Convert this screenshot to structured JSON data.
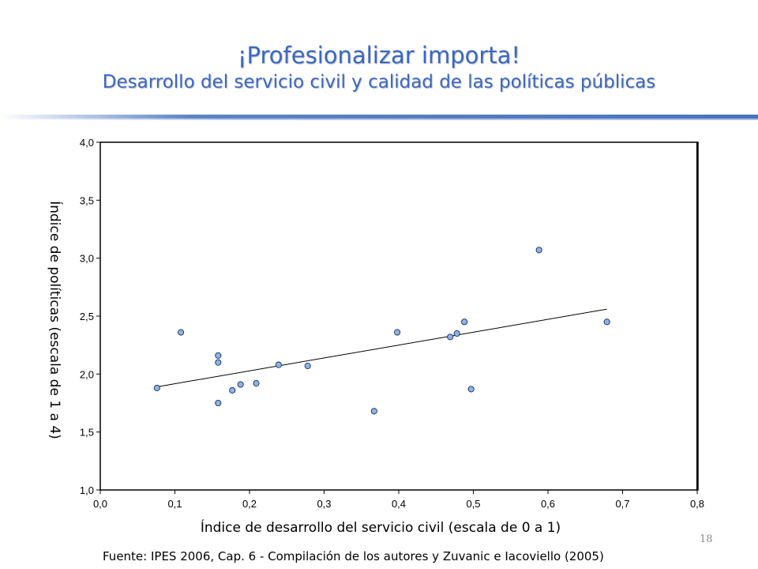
{
  "slide": {
    "title": "¡Profesionalizar importa!",
    "subtitle": "Desarrollo del servicio civil y calidad de las políticas públicas",
    "source": "Fuente: IPES 2006, Cap. 6 - Compilación de los autores y Zuvanic e Iacoviello (2005)",
    "page_number": "18",
    "accent_color": "#3a67c4"
  },
  "chart_data": {
    "type": "scatter",
    "title": "",
    "xlabel": "Índice de desarrollo del servicio civil (escala de 0 a 1)",
    "ylabel": "Índice de políticas (escala de 1 a 4)",
    "xlim": [
      0.0,
      0.8
    ],
    "ylim": [
      1.0,
      4.0
    ],
    "x_ticks": [
      "0,0",
      "0,1",
      "0,2",
      "0,3",
      "0,4",
      "0,5",
      "0,6",
      "0,7",
      "0,8"
    ],
    "y_ticks": [
      "1,0",
      "1,5",
      "2,0",
      "2,5",
      "3,0",
      "3,5",
      "4,0"
    ],
    "grid": false,
    "marker_color": "#8db4e8",
    "points": [
      {
        "x": 0.076,
        "y": 1.88
      },
      {
        "x": 0.108,
        "y": 2.36
      },
      {
        "x": 0.158,
        "y": 2.16
      },
      {
        "x": 0.158,
        "y": 2.1
      },
      {
        "x": 0.158,
        "y": 1.75
      },
      {
        "x": 0.177,
        "y": 1.86
      },
      {
        "x": 0.188,
        "y": 1.91
      },
      {
        "x": 0.209,
        "y": 1.92
      },
      {
        "x": 0.239,
        "y": 2.08
      },
      {
        "x": 0.278,
        "y": 2.07
      },
      {
        "x": 0.367,
        "y": 1.68
      },
      {
        "x": 0.398,
        "y": 2.36
      },
      {
        "x": 0.469,
        "y": 2.32
      },
      {
        "x": 0.478,
        "y": 2.35
      },
      {
        "x": 0.488,
        "y": 2.45
      },
      {
        "x": 0.497,
        "y": 1.87
      },
      {
        "x": 0.588,
        "y": 3.07
      },
      {
        "x": 0.679,
        "y": 2.45
      }
    ],
    "trendline": {
      "x": [
        0.076,
        0.679
      ],
      "y": [
        1.89,
        2.56
      ]
    }
  }
}
